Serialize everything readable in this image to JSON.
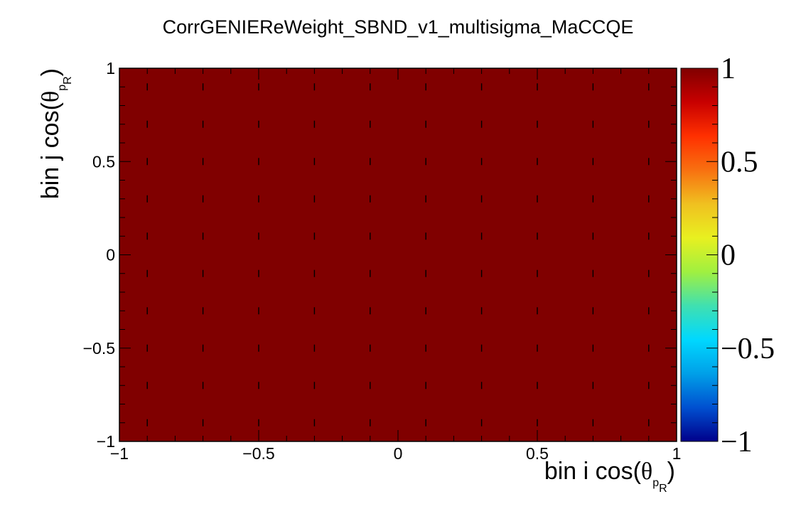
{
  "chart_data": {
    "type": "heatmap",
    "title": "CorrGENIEReWeight_SBND_v1_multisigma_MaCCQE",
    "xlabel": {
      "prefix": "bin i cos(",
      "symbol": "θ",
      "sub_p": "p",
      "sub_R": "R",
      "suffix": ")"
    },
    "ylabel": {
      "prefix": "bin j cos(",
      "symbol": "θ",
      "sub_p": "p",
      "sub_R": "R",
      "suffix": ")"
    },
    "xlim": [
      -1,
      1
    ],
    "ylim": [
      -1,
      1
    ],
    "x_ticks": [
      {
        "value": -1,
        "label": "−1"
      },
      {
        "value": -0.5,
        "label": "−0.5"
      },
      {
        "value": 0,
        "label": "0"
      },
      {
        "value": 0.5,
        "label": "0.5"
      },
      {
        "value": 1,
        "label": "1"
      }
    ],
    "y_ticks": [
      {
        "value": -1,
        "label": "−1"
      },
      {
        "value": -0.5,
        "label": "−0.5"
      },
      {
        "value": 0,
        "label": "0"
      },
      {
        "value": 0.5,
        "label": "0.5"
      },
      {
        "value": 1,
        "label": "1"
      }
    ],
    "z_range": [
      -1,
      1
    ],
    "z_ticks": [
      {
        "value": 1,
        "label": "1"
      },
      {
        "value": 0.5,
        "label": "0.5"
      },
      {
        "value": 0,
        "label": "0"
      },
      {
        "value": -0.5,
        "label": "−0.5"
      },
      {
        "value": -1,
        "label": "−1"
      }
    ],
    "values": [
      [
        1
      ]
    ],
    "colorscale": [
      "#00008b",
      "#0050d0",
      "#00a0e8",
      "#00d8ff",
      "#40e0b0",
      "#a0f040",
      "#e8f020",
      "#f0c020",
      "#f87010",
      "#ff3000",
      "#c80000",
      "#800000"
    ],
    "cell_color": "#800000",
    "grid": false,
    "colorbar_position": "right"
  }
}
